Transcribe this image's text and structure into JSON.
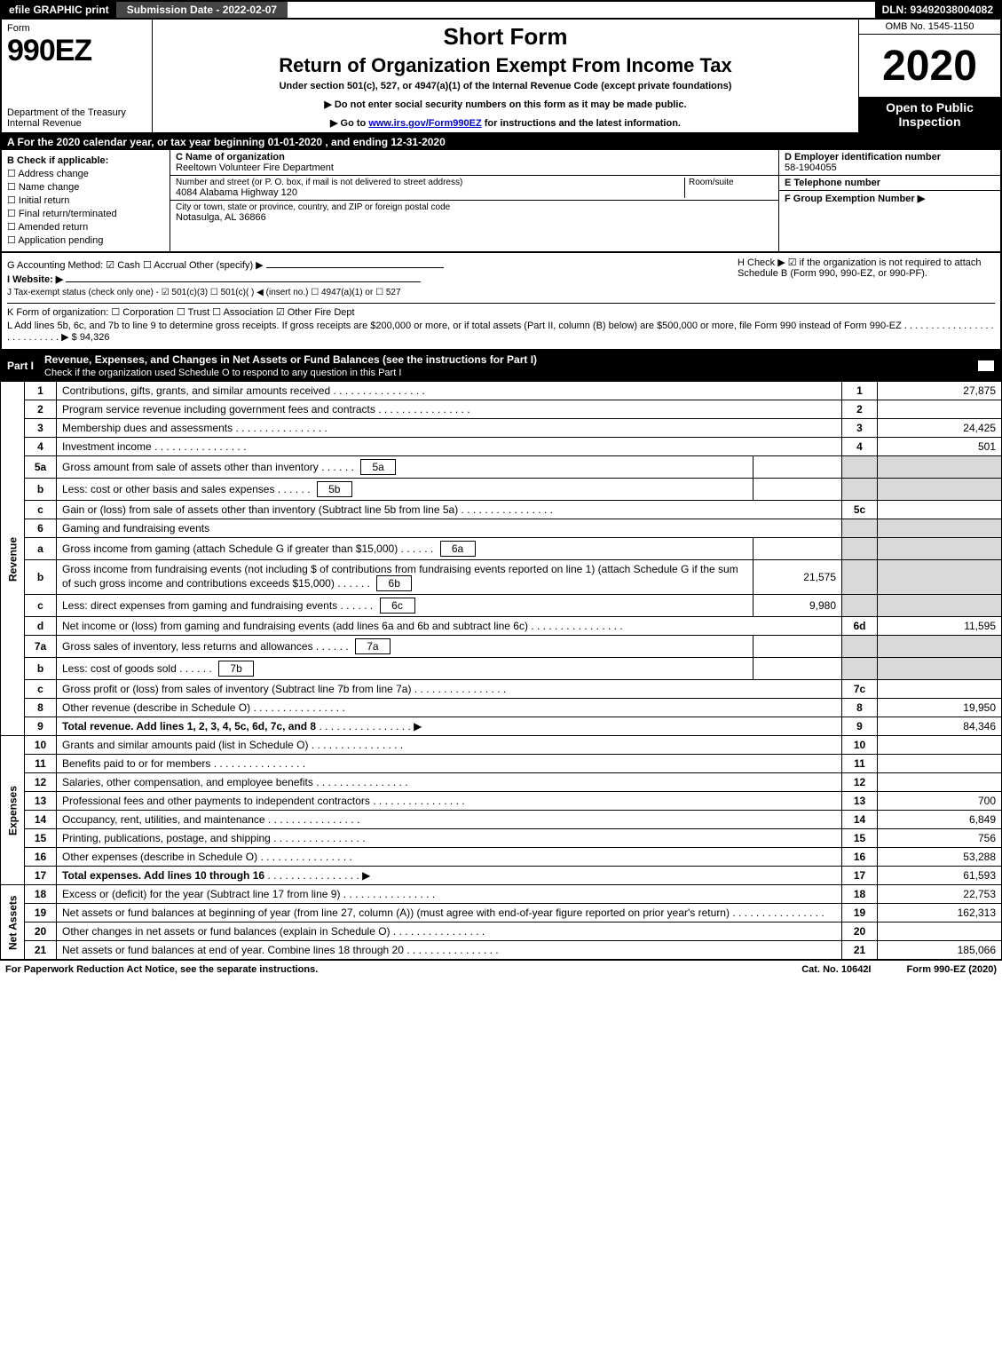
{
  "topbar": {
    "left": "efile GRAPHIC print",
    "mid": "Submission Date - 2022-02-07",
    "right": "DLN: 93492038004082"
  },
  "header": {
    "form_label": "Form",
    "form_number": "990EZ",
    "dept": "Department of the Treasury\nInternal Revenue",
    "short_form": "Short Form",
    "title": "Return of Organization Exempt From Income Tax",
    "subtitle": "Under section 501(c), 527, or 4947(a)(1) of the Internal Revenue Code (except private foundations)",
    "arrow1": "▶ Do not enter social security numbers on this form as it may be made public.",
    "arrow2_pre": "▶ Go to ",
    "arrow2_link": "www.irs.gov/Form990EZ",
    "arrow2_post": " for instructions and the latest information.",
    "omb": "OMB No. 1545-1150",
    "year": "2020",
    "open": "Open to Public Inspection"
  },
  "row_a": "A   For the 2020 calendar year, or tax year beginning 01-01-2020 , and ending 12-31-2020",
  "section_b": {
    "title": "B  Check if applicable:",
    "items": [
      "Address change",
      "Name change",
      "Initial return",
      "Final return/terminated",
      "Amended return",
      "Application pending"
    ]
  },
  "section_c": {
    "name_lbl": "C Name of organization",
    "name": "Reeltown Volunteer Fire Department",
    "street_lbl": "Number and street (or P. O. box, if mail is not delivered to street address)",
    "room_lbl": "Room/suite",
    "street": "4084 Alabama Highway 120",
    "city_lbl": "City or town, state or province, country, and ZIP or foreign postal code",
    "city": "Notasulga, AL  36866"
  },
  "section_d": {
    "ein_lbl": "D Employer identification number",
    "ein": "58-1904055",
    "tel_lbl": "E Telephone number",
    "group_lbl": "F Group Exemption Number   ▶"
  },
  "info": {
    "g": "G Accounting Method:   ☑ Cash  ☐ Accrual  Other (specify) ▶",
    "h": "H  Check ▶ ☑ if the organization is not required to attach Schedule B (Form 990, 990-EZ, or 990-PF).",
    "i": "I Website: ▶",
    "j": "J Tax-exempt status (check only one) - ☑ 501(c)(3) ☐ 501(c)(  ) ◀ (insert no.) ☐ 4947(a)(1) or ☐ 527",
    "k": "K Form of organization:  ☐ Corporation  ☐ Trust  ☐ Association  ☑ Other Fire Dept",
    "l": "L Add lines 5b, 6c, and 7b to line 9 to determine gross receipts. If gross receipts are $200,000 or more, or if total assets (Part II, column (B) below) are $500,000 or more, file Form 990 instead of Form 990-EZ . . . . . . . . . . . . . . . . . . . . . . . . . . . ▶ $ 94,326"
  },
  "part1": {
    "label": "Part I",
    "title": "Revenue, Expenses, and Changes in Net Assets or Fund Balances (see the instructions for Part I)",
    "sub": "Check if the organization used Schedule O to respond to any question in this Part I"
  },
  "sections": {
    "revenue": "Revenue",
    "expenses": "Expenses",
    "netassets": "Net Assets"
  },
  "rows": [
    {
      "n": "1",
      "desc": "Contributions, gifts, grants, and similar amounts received",
      "box": "1",
      "val": "27,875"
    },
    {
      "n": "2",
      "desc": "Program service revenue including government fees and contracts",
      "box": "2",
      "val": ""
    },
    {
      "n": "3",
      "desc": "Membership dues and assessments",
      "box": "3",
      "val": "24,425"
    },
    {
      "n": "4",
      "desc": "Investment income",
      "box": "4",
      "val": "501"
    },
    {
      "n": "5a",
      "desc": "Gross amount from sale of assets other than inventory",
      "inner": "5a",
      "innerval": ""
    },
    {
      "n": "b",
      "desc": "Less: cost or other basis and sales expenses",
      "inner": "5b",
      "innerval": ""
    },
    {
      "n": "c",
      "desc": "Gain or (loss) from sale of assets other than inventory (Subtract line 5b from line 5a)",
      "box": "5c",
      "val": ""
    },
    {
      "n": "6",
      "desc": "Gaming and fundraising events"
    },
    {
      "n": "a",
      "desc": "Gross income from gaming (attach Schedule G if greater than $15,000)",
      "inner": "6a",
      "innerval": ""
    },
    {
      "n": "b",
      "desc": "Gross income from fundraising events (not including $                     of contributions from fundraising events reported on line 1) (attach Schedule G if the sum of such gross income and contributions exceeds $15,000)",
      "inner": "6b",
      "innerval": "21,575"
    },
    {
      "n": "c",
      "desc": "Less: direct expenses from gaming and fundraising events",
      "inner": "6c",
      "innerval": "9,980"
    },
    {
      "n": "d",
      "desc": "Net income or (loss) from gaming and fundraising events (add lines 6a and 6b and subtract line 6c)",
      "box": "6d",
      "val": "11,595"
    },
    {
      "n": "7a",
      "desc": "Gross sales of inventory, less returns and allowances",
      "inner": "7a",
      "innerval": ""
    },
    {
      "n": "b",
      "desc": "Less: cost of goods sold",
      "inner": "7b",
      "innerval": ""
    },
    {
      "n": "c",
      "desc": "Gross profit or (loss) from sales of inventory (Subtract line 7b from line 7a)",
      "box": "7c",
      "val": ""
    },
    {
      "n": "8",
      "desc": "Other revenue (describe in Schedule O)",
      "box": "8",
      "val": "19,950"
    },
    {
      "n": "9",
      "desc": "Total revenue. Add lines 1, 2, 3, 4, 5c, 6d, 7c, and 8",
      "box": "9",
      "val": "84,346",
      "bold": true,
      "arrow": true
    }
  ],
  "exp_rows": [
    {
      "n": "10",
      "desc": "Grants and similar amounts paid (list in Schedule O)",
      "box": "10",
      "val": ""
    },
    {
      "n": "11",
      "desc": "Benefits paid to or for members",
      "box": "11",
      "val": ""
    },
    {
      "n": "12",
      "desc": "Salaries, other compensation, and employee benefits",
      "box": "12",
      "val": ""
    },
    {
      "n": "13",
      "desc": "Professional fees and other payments to independent contractors",
      "box": "13",
      "val": "700"
    },
    {
      "n": "14",
      "desc": "Occupancy, rent, utilities, and maintenance",
      "box": "14",
      "val": "6,849"
    },
    {
      "n": "15",
      "desc": "Printing, publications, postage, and shipping",
      "box": "15",
      "val": "756"
    },
    {
      "n": "16",
      "desc": "Other expenses (describe in Schedule O)",
      "box": "16",
      "val": "53,288"
    },
    {
      "n": "17",
      "desc": "Total expenses. Add lines 10 through 16",
      "box": "17",
      "val": "61,593",
      "bold": true,
      "arrow": true
    }
  ],
  "net_rows": [
    {
      "n": "18",
      "desc": "Excess or (deficit) for the year (Subtract line 17 from line 9)",
      "box": "18",
      "val": "22,753"
    },
    {
      "n": "19",
      "desc": "Net assets or fund balances at beginning of year (from line 27, column (A)) (must agree with end-of-year figure reported on prior year's return)",
      "box": "19",
      "val": "162,313"
    },
    {
      "n": "20",
      "desc": "Other changes in net assets or fund balances (explain in Schedule O)",
      "box": "20",
      "val": ""
    },
    {
      "n": "21",
      "desc": "Net assets or fund balances at end of year. Combine lines 18 through 20",
      "box": "21",
      "val": "185,066"
    }
  ],
  "footer": {
    "left": "For Paperwork Reduction Act Notice, see the separate instructions.",
    "mid": "Cat. No. 10642I",
    "right": "Form 990-EZ (2020)"
  }
}
